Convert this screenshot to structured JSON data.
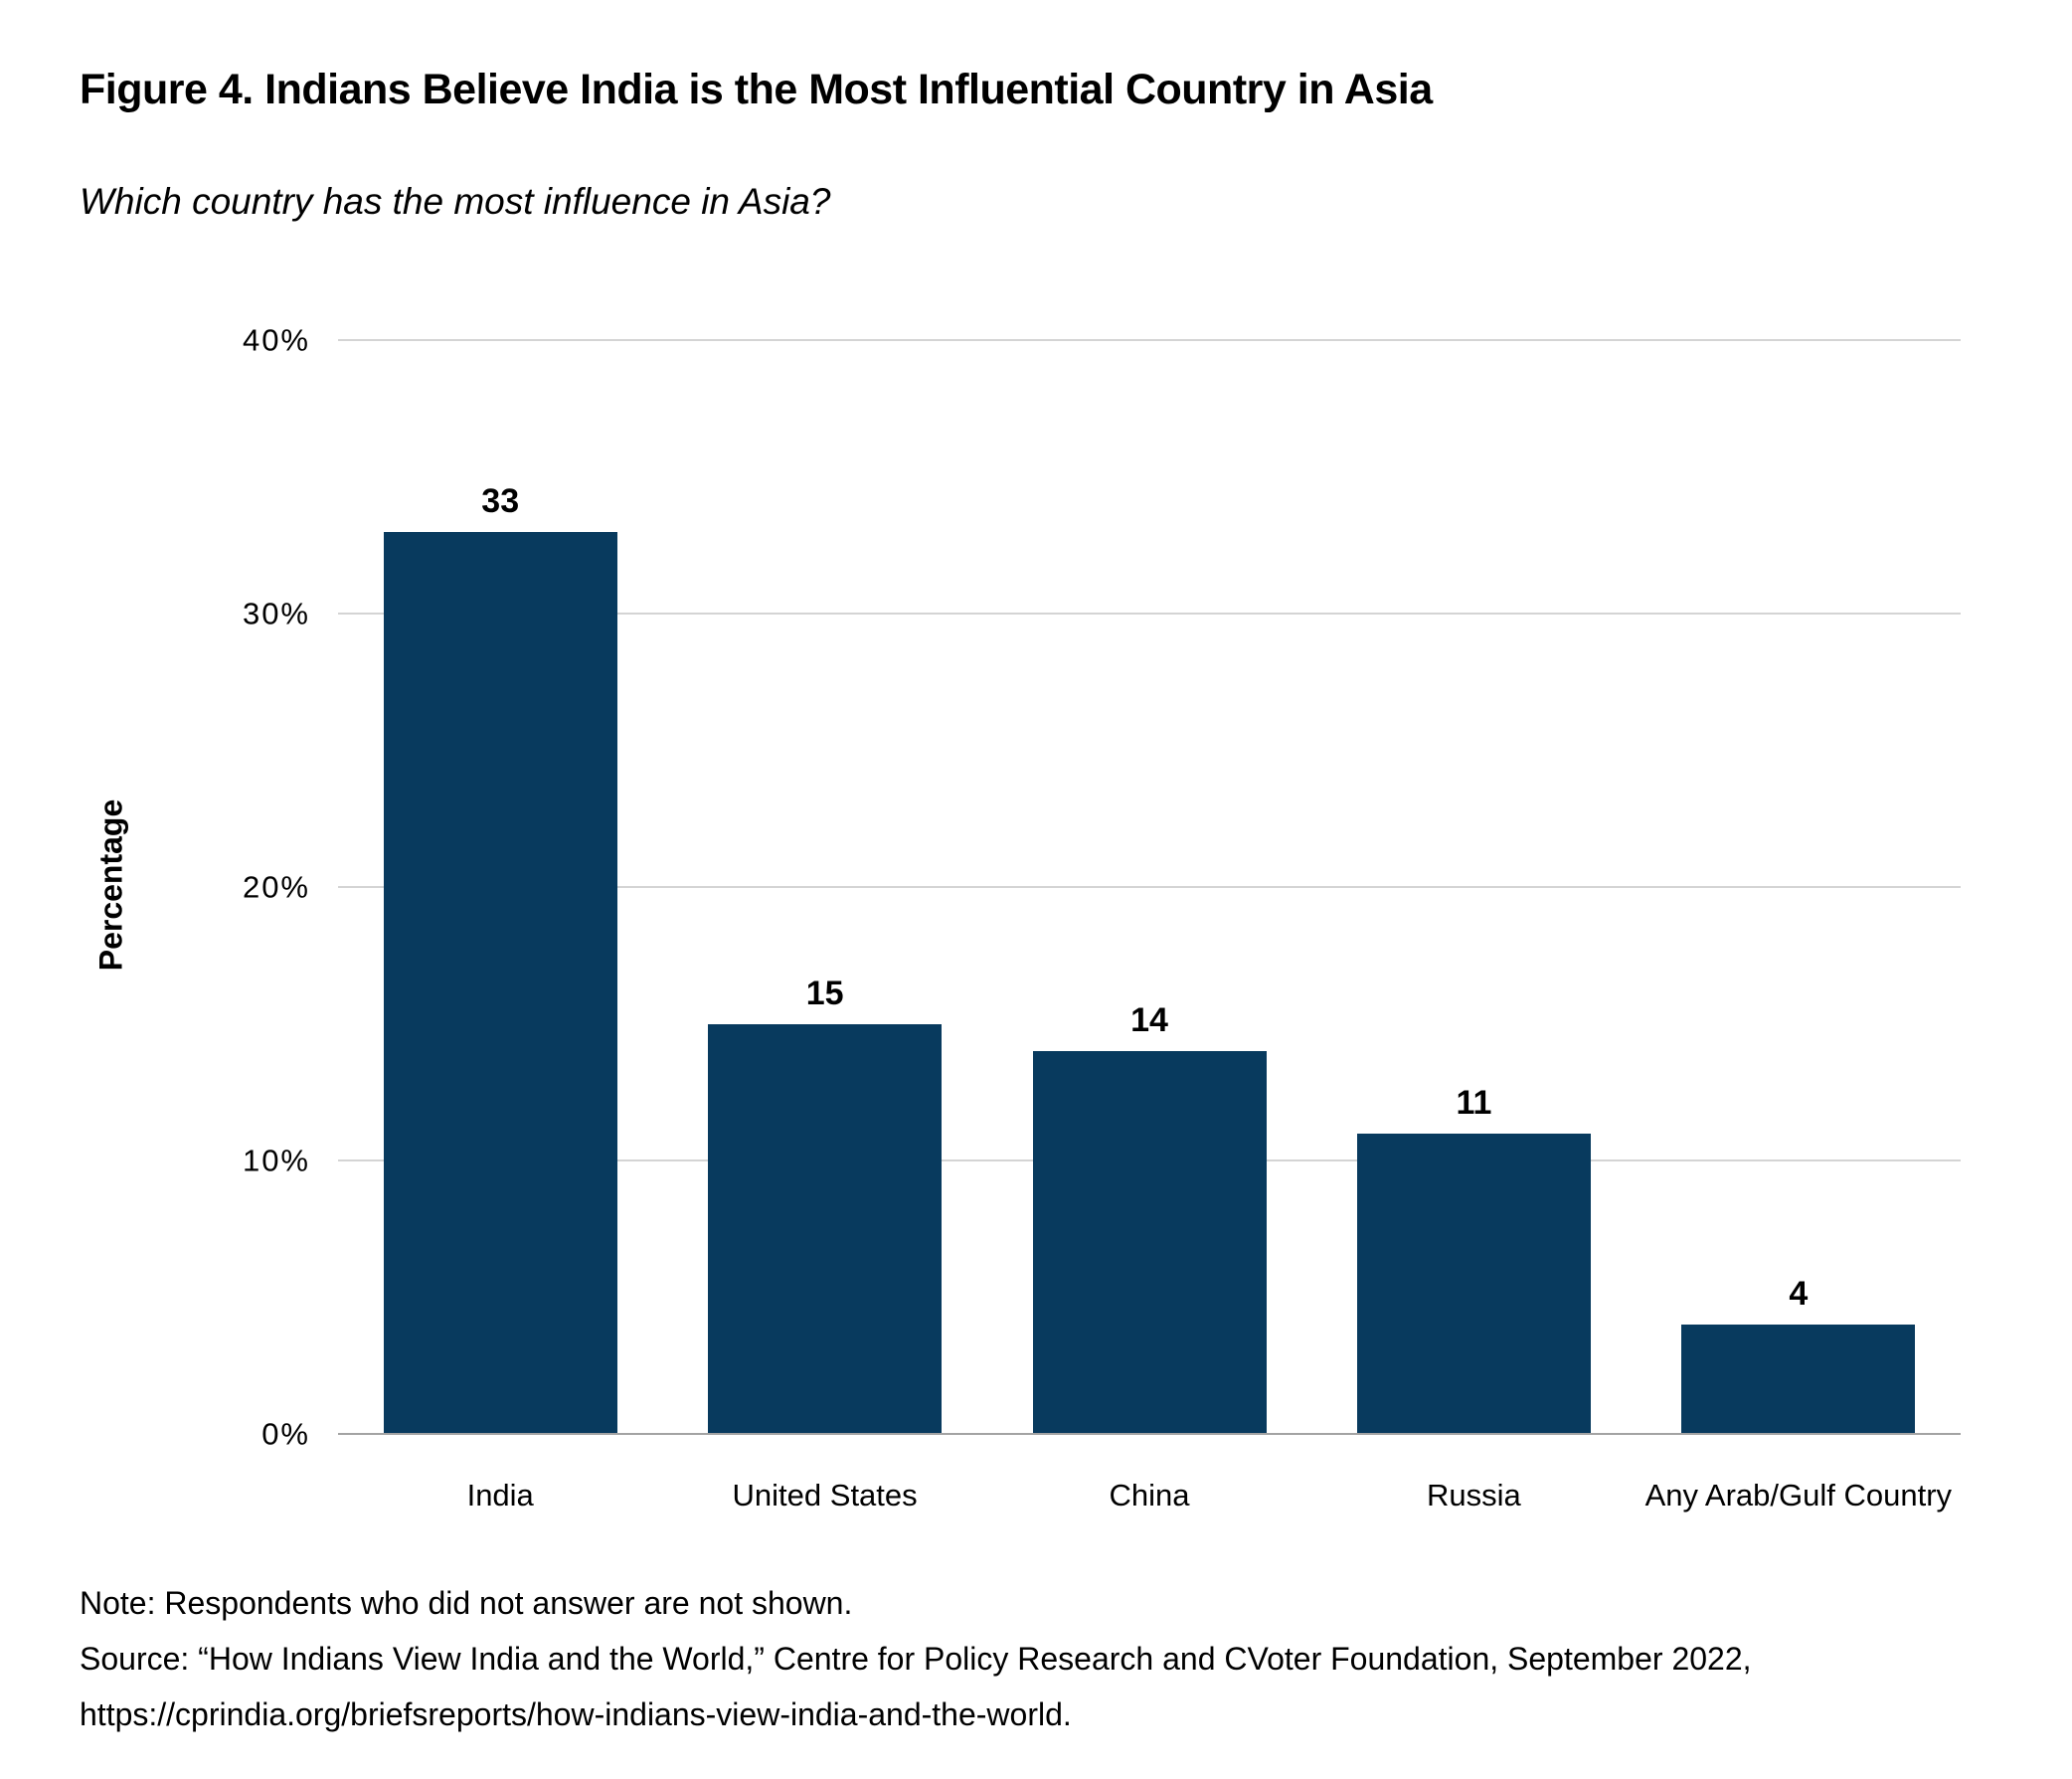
{
  "figure": {
    "title": "Figure 4. Indians Believe India is the Most Influential Country in Asia",
    "subtitle": "Which country has the most influence in Asia?"
  },
  "chart_data": {
    "type": "bar",
    "title": "Figure 4. Indians Believe India is the Most Influential Country in Asia",
    "subtitle": "Which country has the most influence in Asia?",
    "categories": [
      "India",
      "United States",
      "China",
      "Russia",
      "Any Arab/Gulf Country"
    ],
    "values": [
      33,
      15,
      14,
      11,
      4
    ],
    "value_labels": [
      "33",
      "15",
      "14",
      "11",
      "4"
    ],
    "xlabel": "",
    "ylabel": "Percentage",
    "ylim": [
      0,
      40
    ],
    "yticks": [
      0,
      10,
      20,
      30,
      40
    ],
    "ytick_labels": [
      "0%",
      "10%",
      "20%",
      "30%",
      "40%"
    ],
    "grid": "horizontal",
    "legend": "none",
    "bar_color": "#083a5e"
  },
  "colors": {
    "bar": "#083a5e",
    "gridline": "#d4d4d4",
    "axis_line": "#a3a3a3",
    "text": "#000000",
    "background": "#ffffff"
  },
  "notes": {
    "note": "Note: Respondents who did not answer are not shown.",
    "source": "Source: “How Indians View India and the World,” Centre for Policy Research and CVoter Foundation, September 2022,",
    "url": "https://cprindia.org/briefsreports/how-indians-view-india-and-the-world."
  }
}
